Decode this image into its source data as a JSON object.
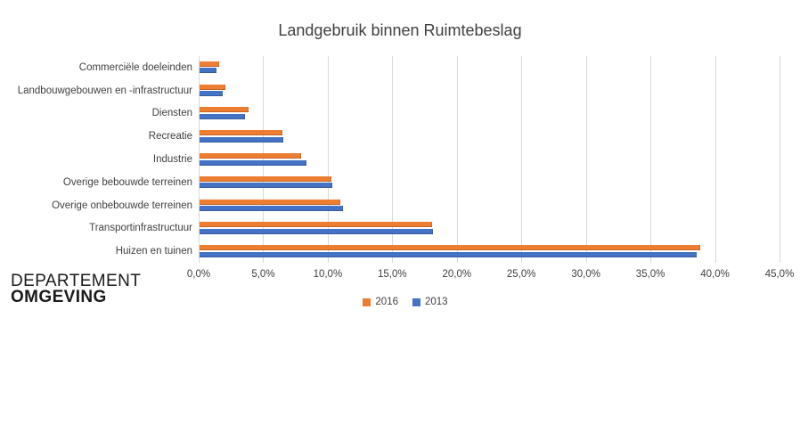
{
  "title": "Landgebruik binnen Ruimtebeslag",
  "logo": {
    "line1": "DEPARTEMENT",
    "line2": "OMGEVING"
  },
  "chart_data": {
    "type": "bar",
    "orientation": "horizontal",
    "title": "Landgebruik binnen Ruimtebeslag",
    "categories": [
      "Commerciële doeleinden",
      "Landbouwgebouwen en -infrastructuur",
      "Diensten",
      "Recreatie",
      "Industrie",
      "Overige bebouwde terreinen",
      "Overige onbebouwde terreinen",
      "Transportinfrastructuur",
      "Huizen en tuinen"
    ],
    "series": [
      {
        "name": "2016",
        "color": "#ED7D31",
        "values": [
          1.5,
          2.0,
          3.8,
          6.4,
          7.9,
          10.2,
          10.9,
          18.0,
          38.8
        ]
      },
      {
        "name": "2013",
        "color": "#4472C4",
        "values": [
          1.3,
          1.8,
          3.5,
          6.5,
          8.3,
          10.3,
          11.1,
          18.1,
          38.5
        ]
      }
    ],
    "xlim": [
      0,
      45
    ],
    "xtick_step": 5,
    "xtick_labels": [
      "0,0%",
      "5,0%",
      "10,0%",
      "15,0%",
      "20,0%",
      "25,0%",
      "30,0%",
      "35,0%",
      "40,0%",
      "45,0%"
    ],
    "grid": true,
    "gridline_color": "#D9D9D9",
    "legend_position": "bottom"
  }
}
